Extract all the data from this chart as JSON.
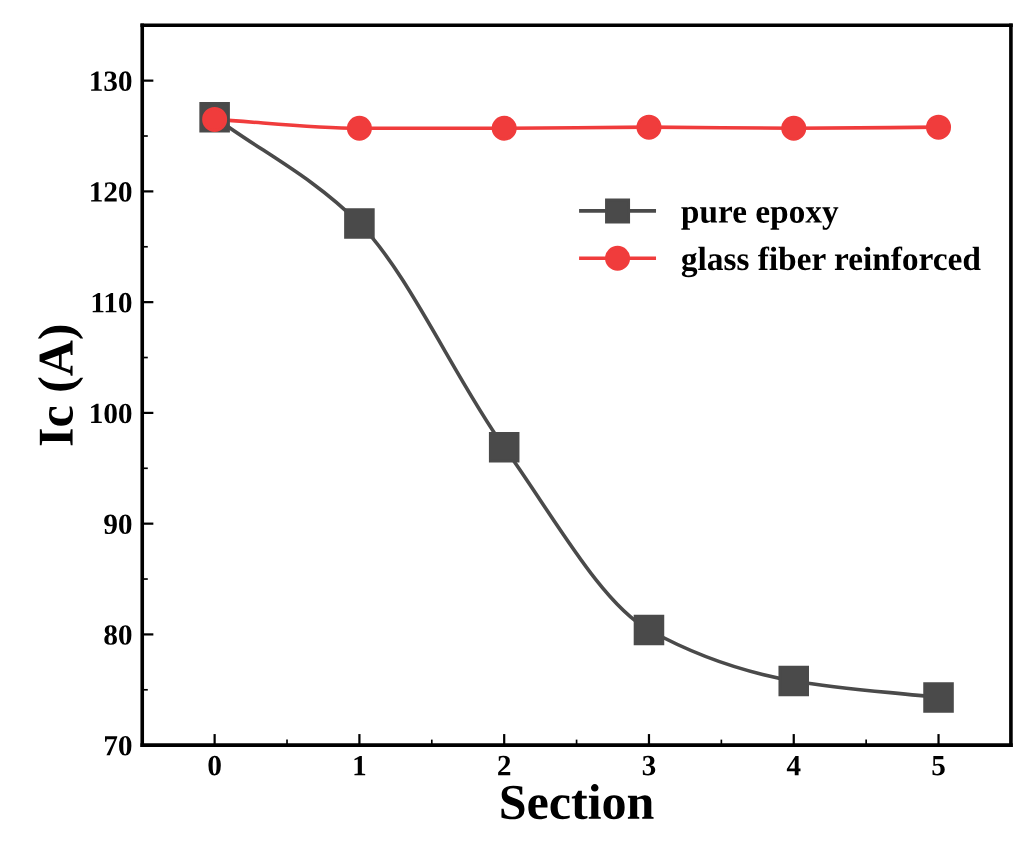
{
  "chart_data": {
    "type": "line",
    "xlabel": "Section",
    "ylabel": "Ic (A)",
    "x": [
      0,
      1,
      2,
      3,
      4,
      5
    ],
    "series": [
      {
        "name": "pure epoxy",
        "color": "#4a4a4a",
        "marker": "square",
        "values": [
          126.7,
          117.1,
          96.9,
          80.4,
          75.8,
          74.3
        ]
      },
      {
        "name": "glass fiber reinforced",
        "color": "#f03c3c",
        "marker": "circle",
        "values": [
          126.5,
          125.7,
          125.7,
          125.8,
          125.7,
          125.8
        ]
      }
    ],
    "xlim": [
      -0.5,
      5.5
    ],
    "xticks": [
      0,
      1,
      2,
      3,
      4,
      5
    ],
    "ylim": [
      70,
      135
    ],
    "yticks": [
      70,
      80,
      90,
      100,
      110,
      120,
      130
    ],
    "grid": false,
    "legend": "top right",
    "line_style": "solid"
  }
}
